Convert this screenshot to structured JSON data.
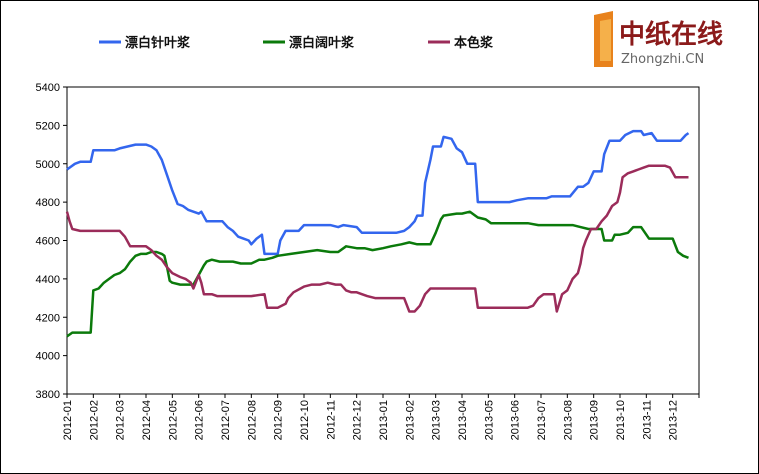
{
  "logo": {
    "cn_text": "中纸在线",
    "en_text": "Zhongzhi.CN"
  },
  "chart_data": {
    "type": "line",
    "ylim": [
      3800,
      5400
    ],
    "yticks": [
      "5400",
      "5200",
      "5000",
      "4800",
      "4600",
      "4400",
      "4200",
      "4000",
      "3800"
    ],
    "ytick_values": [
      5400,
      5200,
      5000,
      4800,
      4600,
      4400,
      4200,
      4000,
      3800
    ],
    "grid": false,
    "legend_position": "top",
    "x_labels": [
      "2012-01",
      "2012-02",
      "2012-03",
      "2012-04",
      "2012-05",
      "2012-06",
      "2012-07",
      "2012-08",
      "2012-09",
      "2012-10",
      "2012-11",
      "2012-12",
      "2013-01",
      "2013-02",
      "2013-03",
      "2013-04",
      "2013-05",
      "2013-06",
      "2013-07",
      "2013-08",
      "2013-09",
      "2013-10",
      "2013-11",
      "2013-12"
    ],
    "xlim": [
      0,
      24
    ],
    "series": [
      {
        "name": "漂白针叶浆",
        "color": "#3366ee",
        "points": [
          [
            0,
            4970
          ],
          [
            0.1,
            4980
          ],
          [
            0.3,
            5000
          ],
          [
            0.5,
            5010
          ],
          [
            0.8,
            5010
          ],
          [
            0.9,
            5010
          ],
          [
            1.0,
            5070
          ],
          [
            1.3,
            5070
          ],
          [
            1.8,
            5070
          ],
          [
            2.0,
            5080
          ],
          [
            2.3,
            5090
          ],
          [
            2.6,
            5100
          ],
          [
            3.0,
            5100
          ],
          [
            3.2,
            5090
          ],
          [
            3.4,
            5070
          ],
          [
            3.6,
            5020
          ],
          [
            3.8,
            4940
          ],
          [
            4.0,
            4860
          ],
          [
            4.2,
            4790
          ],
          [
            4.4,
            4780
          ],
          [
            4.6,
            4760
          ],
          [
            4.8,
            4750
          ],
          [
            5.0,
            4740
          ],
          [
            5.1,
            4750
          ],
          [
            5.3,
            4700
          ],
          [
            5.6,
            4700
          ],
          [
            5.9,
            4700
          ],
          [
            6.1,
            4670
          ],
          [
            6.3,
            4650
          ],
          [
            6.5,
            4620
          ],
          [
            6.7,
            4610
          ],
          [
            6.9,
            4600
          ],
          [
            7.0,
            4580
          ],
          [
            7.2,
            4610
          ],
          [
            7.4,
            4630
          ],
          [
            7.5,
            4530
          ],
          [
            7.7,
            4530
          ],
          [
            8.0,
            4530
          ],
          [
            8.1,
            4600
          ],
          [
            8.3,
            4650
          ],
          [
            8.6,
            4650
          ],
          [
            8.8,
            4650
          ],
          [
            9.0,
            4680
          ],
          [
            9.5,
            4680
          ],
          [
            10.0,
            4680
          ],
          [
            10.3,
            4670
          ],
          [
            10.5,
            4680
          ],
          [
            11.0,
            4670
          ],
          [
            11.2,
            4640
          ],
          [
            11.5,
            4640
          ],
          [
            12.0,
            4640
          ],
          [
            12.5,
            4640
          ],
          [
            12.8,
            4650
          ],
          [
            13.0,
            4670
          ],
          [
            13.2,
            4700
          ],
          [
            13.3,
            4730
          ],
          [
            13.5,
            4730
          ],
          [
            13.6,
            4900
          ],
          [
            13.8,
            5020
          ],
          [
            13.9,
            5090
          ],
          [
            14.2,
            5090
          ],
          [
            14.3,
            5140
          ],
          [
            14.6,
            5130
          ],
          [
            14.8,
            5080
          ],
          [
            15.0,
            5060
          ],
          [
            15.2,
            5000
          ],
          [
            15.5,
            5000
          ],
          [
            15.6,
            4800
          ],
          [
            15.8,
            4800
          ],
          [
            16.3,
            4800
          ],
          [
            16.8,
            4800
          ],
          [
            17.1,
            4810
          ],
          [
            17.5,
            4820
          ],
          [
            17.9,
            4820
          ],
          [
            18.2,
            4820
          ],
          [
            18.4,
            4830
          ],
          [
            18.8,
            4830
          ],
          [
            19.1,
            4830
          ],
          [
            19.4,
            4880
          ],
          [
            19.6,
            4880
          ],
          [
            19.8,
            4900
          ],
          [
            20.0,
            4960
          ],
          [
            20.3,
            4960
          ],
          [
            20.4,
            5050
          ],
          [
            20.6,
            5120
          ],
          [
            20.8,
            5120
          ],
          [
            21.0,
            5120
          ],
          [
            21.2,
            5150
          ],
          [
            21.5,
            5170
          ],
          [
            21.8,
            5170
          ],
          [
            21.9,
            5150
          ],
          [
            22.2,
            5160
          ],
          [
            22.4,
            5120
          ],
          [
            22.8,
            5120
          ],
          [
            23.1,
            5120
          ],
          [
            23.3,
            5120
          ],
          [
            23.5,
            5150
          ],
          [
            23.6,
            5160
          ]
        ]
      },
      {
        "name": "漂白阔叶浆",
        "color": "#0b7a0b",
        "points": [
          [
            0,
            4100
          ],
          [
            0.2,
            4120
          ],
          [
            0.5,
            4120
          ],
          [
            0.9,
            4120
          ],
          [
            1.0,
            4340
          ],
          [
            1.2,
            4350
          ],
          [
            1.4,
            4380
          ],
          [
            1.6,
            4400
          ],
          [
            1.8,
            4420
          ],
          [
            2.0,
            4430
          ],
          [
            2.2,
            4450
          ],
          [
            2.4,
            4490
          ],
          [
            2.6,
            4520
          ],
          [
            2.8,
            4530
          ],
          [
            3.0,
            4530
          ],
          [
            3.2,
            4540
          ],
          [
            3.4,
            4540
          ],
          [
            3.6,
            4530
          ],
          [
            3.7,
            4520
          ],
          [
            3.8,
            4460
          ],
          [
            3.9,
            4390
          ],
          [
            4.0,
            4380
          ],
          [
            4.3,
            4370
          ],
          [
            4.7,
            4370
          ],
          [
            4.8,
            4370
          ],
          [
            5.0,
            4420
          ],
          [
            5.2,
            4470
          ],
          [
            5.3,
            4490
          ],
          [
            5.5,
            4500
          ],
          [
            5.8,
            4490
          ],
          [
            6.0,
            4490
          ],
          [
            6.3,
            4490
          ],
          [
            6.6,
            4480
          ],
          [
            7.0,
            4480
          ],
          [
            7.3,
            4500
          ],
          [
            7.5,
            4500
          ],
          [
            7.8,
            4510
          ],
          [
            8.0,
            4520
          ],
          [
            8.5,
            4530
          ],
          [
            9.0,
            4540
          ],
          [
            9.5,
            4550
          ],
          [
            10.0,
            4540
          ],
          [
            10.3,
            4540
          ],
          [
            10.6,
            4570
          ],
          [
            11.0,
            4560
          ],
          [
            11.3,
            4560
          ],
          [
            11.6,
            4550
          ],
          [
            12.0,
            4560
          ],
          [
            12.3,
            4570
          ],
          [
            12.7,
            4580
          ],
          [
            13.0,
            4590
          ],
          [
            13.3,
            4580
          ],
          [
            13.5,
            4580
          ],
          [
            13.8,
            4580
          ],
          [
            14.0,
            4640
          ],
          [
            14.2,
            4710
          ],
          [
            14.3,
            4730
          ],
          [
            14.8,
            4740
          ],
          [
            15.0,
            4740
          ],
          [
            15.3,
            4750
          ],
          [
            15.6,
            4720
          ],
          [
            15.9,
            4710
          ],
          [
            16.1,
            4690
          ],
          [
            16.5,
            4690
          ],
          [
            17.0,
            4690
          ],
          [
            17.5,
            4690
          ],
          [
            17.9,
            4680
          ],
          [
            18.3,
            4680
          ],
          [
            18.8,
            4680
          ],
          [
            19.2,
            4680
          ],
          [
            19.5,
            4670
          ],
          [
            19.8,
            4660
          ],
          [
            20.0,
            4660
          ],
          [
            20.3,
            4660
          ],
          [
            20.4,
            4600
          ],
          [
            20.7,
            4600
          ],
          [
            20.8,
            4630
          ],
          [
            21.0,
            4630
          ],
          [
            21.3,
            4640
          ],
          [
            21.5,
            4670
          ],
          [
            21.8,
            4670
          ],
          [
            22.1,
            4610
          ],
          [
            22.4,
            4610
          ],
          [
            22.8,
            4610
          ],
          [
            23.0,
            4610
          ],
          [
            23.2,
            4540
          ],
          [
            23.4,
            4520
          ],
          [
            23.6,
            4510
          ]
        ]
      },
      {
        "name": "本色浆",
        "color": "#9b2c5a",
        "points": [
          [
            0,
            4750
          ],
          [
            0.1,
            4700
          ],
          [
            0.2,
            4660
          ],
          [
            0.5,
            4650
          ],
          [
            1.0,
            4650
          ],
          [
            1.5,
            4650
          ],
          [
            2.0,
            4650
          ],
          [
            2.2,
            4620
          ],
          [
            2.4,
            4570
          ],
          [
            2.7,
            4570
          ],
          [
            3.0,
            4570
          ],
          [
            3.2,
            4550
          ],
          [
            3.4,
            4520
          ],
          [
            3.6,
            4500
          ],
          [
            3.8,
            4460
          ],
          [
            4.0,
            4430
          ],
          [
            4.3,
            4410
          ],
          [
            4.5,
            4400
          ],
          [
            4.7,
            4380
          ],
          [
            4.8,
            4350
          ],
          [
            5.0,
            4420
          ],
          [
            5.1,
            4380
          ],
          [
            5.2,
            4320
          ],
          [
            5.5,
            4320
          ],
          [
            5.7,
            4310
          ],
          [
            6.0,
            4310
          ],
          [
            6.5,
            4310
          ],
          [
            7.0,
            4310
          ],
          [
            7.5,
            4320
          ],
          [
            7.6,
            4250
          ],
          [
            7.8,
            4250
          ],
          [
            8.0,
            4250
          ],
          [
            8.3,
            4270
          ],
          [
            8.4,
            4300
          ],
          [
            8.6,
            4330
          ],
          [
            9.0,
            4360
          ],
          [
            9.3,
            4370
          ],
          [
            9.6,
            4370
          ],
          [
            9.9,
            4380
          ],
          [
            10.2,
            4370
          ],
          [
            10.4,
            4370
          ],
          [
            10.6,
            4340
          ],
          [
            10.8,
            4330
          ],
          [
            11.0,
            4330
          ],
          [
            11.2,
            4320
          ],
          [
            11.4,
            4310
          ],
          [
            11.7,
            4300
          ],
          [
            12.0,
            4300
          ],
          [
            12.5,
            4300
          ],
          [
            12.8,
            4300
          ],
          [
            13.0,
            4230
          ],
          [
            13.2,
            4230
          ],
          [
            13.4,
            4260
          ],
          [
            13.6,
            4320
          ],
          [
            13.8,
            4350
          ],
          [
            14.0,
            4350
          ],
          [
            14.5,
            4350
          ],
          [
            15.0,
            4350
          ],
          [
            15.5,
            4350
          ],
          [
            15.6,
            4250
          ],
          [
            16.0,
            4250
          ],
          [
            16.5,
            4250
          ],
          [
            17.0,
            4250
          ],
          [
            17.5,
            4250
          ],
          [
            17.7,
            4260
          ],
          [
            17.9,
            4300
          ],
          [
            18.1,
            4320
          ],
          [
            18.3,
            4320
          ],
          [
            18.5,
            4320
          ],
          [
            18.6,
            4230
          ],
          [
            18.8,
            4320
          ],
          [
            19.0,
            4340
          ],
          [
            19.2,
            4400
          ],
          [
            19.4,
            4430
          ],
          [
            19.5,
            4480
          ],
          [
            19.6,
            4560
          ],
          [
            19.7,
            4600
          ],
          [
            19.9,
            4660
          ],
          [
            20.1,
            4660
          ],
          [
            20.3,
            4700
          ],
          [
            20.5,
            4730
          ],
          [
            20.7,
            4780
          ],
          [
            20.9,
            4800
          ],
          [
            21.0,
            4850
          ],
          [
            21.1,
            4930
          ],
          [
            21.3,
            4950
          ],
          [
            21.5,
            4960
          ],
          [
            21.7,
            4970
          ],
          [
            21.9,
            4980
          ],
          [
            22.1,
            4990
          ],
          [
            22.4,
            4990
          ],
          [
            22.7,
            4990
          ],
          [
            22.9,
            4980
          ],
          [
            23.1,
            4930
          ],
          [
            23.4,
            4930
          ],
          [
            23.6,
            4930
          ]
        ]
      }
    ]
  }
}
